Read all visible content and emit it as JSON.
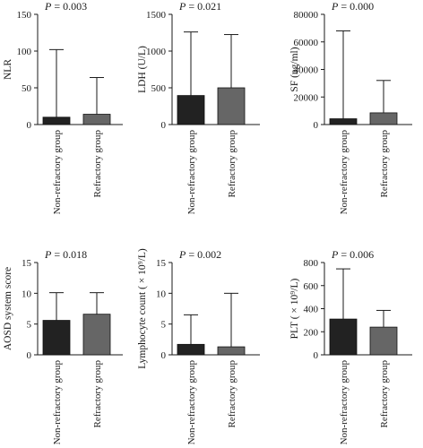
{
  "chart_data": [
    {
      "type": "bar",
      "pvalue": "P = 0.003",
      "ylabel": "NLR",
      "categories": [
        "Non-refractory group",
        "Refractory group"
      ],
      "values": [
        10,
        14
      ],
      "error_upper": [
        102,
        64
      ],
      "ylim": [
        0,
        150
      ],
      "yticks": [
        "0",
        "50",
        "100",
        "150"
      ],
      "tick_values": [
        0,
        50,
        100,
        150
      ]
    },
    {
      "type": "bar",
      "pvalue": "P = 0.021",
      "ylabel": "LDH (U/L)",
      "categories": [
        "Non-refractory group",
        "Refractory group"
      ],
      "values": [
        395,
        500
      ],
      "error_upper": [
        1260,
        1225
      ],
      "ylim": [
        0,
        1500
      ],
      "yticks": [
        "0",
        "500",
        "1000",
        "1500"
      ],
      "tick_values": [
        0,
        500,
        1000,
        1500
      ]
    },
    {
      "type": "bar",
      "pvalue": "P = 0.000",
      "ylabel": "SF (ng/ml)",
      "categories": [
        "Non-refractory group",
        "Refractory group"
      ],
      "values": [
        4200,
        8500
      ],
      "error_upper": [
        68000,
        32000
      ],
      "ylim": [
        0,
        80000
      ],
      "yticks": [
        "0",
        "20000",
        "40000",
        "60000",
        "80000"
      ],
      "tick_values": [
        0,
        20000,
        40000,
        60000,
        80000
      ]
    },
    {
      "type": "bar",
      "pvalue": "P = 0.018",
      "ylabel": "AOSD system score",
      "categories": [
        "Non-refractory group",
        "Refractory group"
      ],
      "values": [
        5.6,
        6.6
      ],
      "error_upper": [
        10.1,
        10.1
      ],
      "ylim": [
        0,
        15
      ],
      "yticks": [
        "0",
        "5",
        "10",
        "15"
      ],
      "tick_values": [
        0,
        5,
        10,
        15
      ]
    },
    {
      "type": "bar",
      "pvalue": "P = 0.002",
      "ylabel": "Lymphocyte count ( × 10⁹/L)",
      "categories": [
        "Non-refractory group",
        "Refractory group"
      ],
      "values": [
        1.7,
        1.3
      ],
      "error_upper": [
        6.5,
        10.0
      ],
      "ylim": [
        0,
        15
      ],
      "yticks": [
        "0",
        "5",
        "10",
        "15"
      ],
      "tick_values": [
        0,
        5,
        10,
        15
      ]
    },
    {
      "type": "bar",
      "pvalue": "P = 0.006",
      "ylabel": "PLT ( × 10⁹/L)",
      "categories": [
        "Non-refractory group",
        "Refractory group"
      ],
      "values": [
        310,
        240
      ],
      "error_upper": [
        745,
        385
      ],
      "ylim": [
        0,
        800
      ],
      "yticks": [
        "0",
        "200",
        "400",
        "600",
        "800"
      ],
      "tick_values": [
        0,
        200,
        400,
        600,
        800
      ]
    }
  ],
  "colors": {
    "non_refractory_bar": "#222222",
    "refractory_bar": "#666666",
    "axis": "#1a1a1a"
  }
}
